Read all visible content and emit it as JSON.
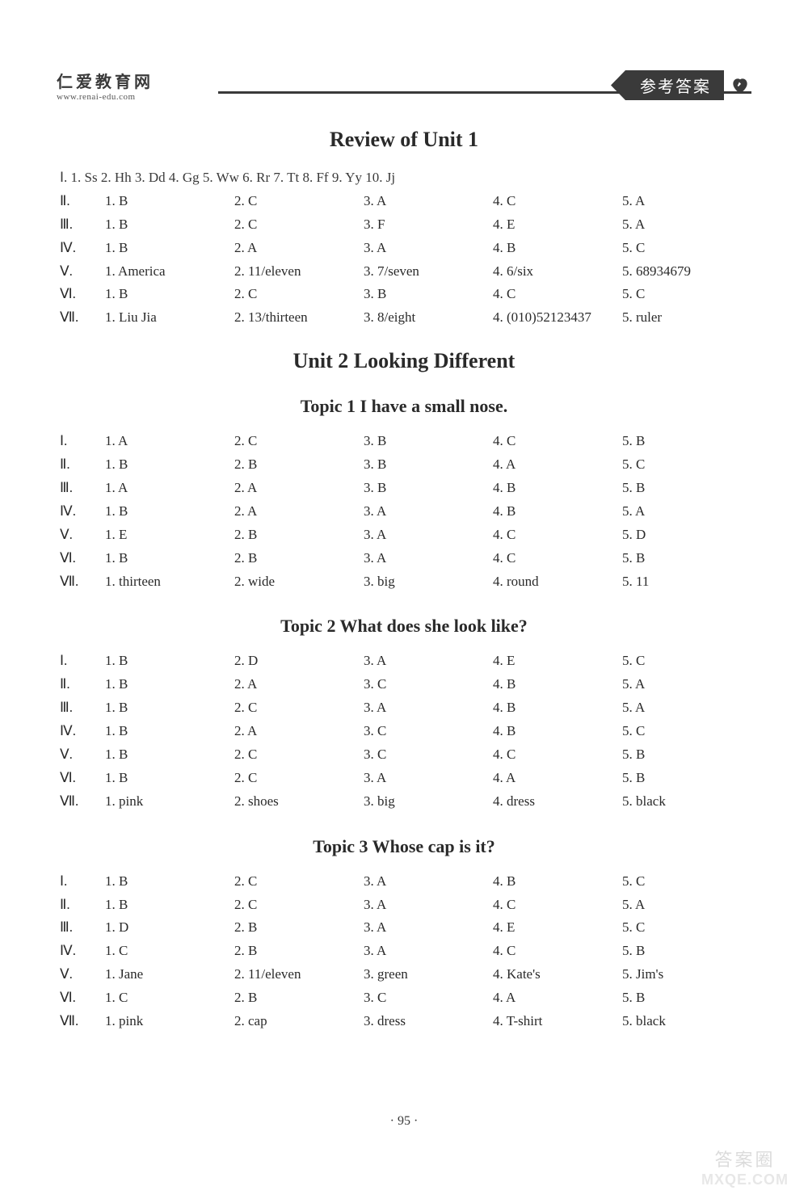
{
  "header": {
    "brand_cn": "仁爱教育网",
    "brand_url": "www.renai-edu.com",
    "badge_text": "参考答案"
  },
  "sections": {
    "review_unit1": {
      "title": "Review of Unit 1",
      "row1_full": "Ⅰ. 1. Ss   2. Hh   3. Dd   4. Gg   5. Ww   6. Rr   7. Tt   8. Ff   9. Yy   10. Jj",
      "row2": {
        "label": "Ⅱ.",
        "cells": [
          "1. B",
          "2. C",
          "3. A",
          "4. C",
          "5. A"
        ]
      },
      "row3": {
        "label": "Ⅲ.",
        "cells": [
          "1. B",
          "2. C",
          "3. F",
          "4. E",
          "5. A"
        ]
      },
      "row4": {
        "label": "Ⅳ.",
        "cells": [
          "1. B",
          "2. A",
          "3. A",
          "4. B",
          "5. C"
        ]
      },
      "row5": {
        "label": "Ⅴ.",
        "cells": [
          "1. America",
          "2. 11/eleven",
          "3. 7/seven",
          "4. 6/six",
          "5. 68934679"
        ]
      },
      "row6": {
        "label": "Ⅵ.",
        "cells": [
          "1. B",
          "2. C",
          "3. B",
          "4. C",
          "5. C"
        ]
      },
      "row7": {
        "label": "Ⅶ.",
        "cells": [
          "1. Liu Jia",
          "2. 13/thirteen",
          "3. 8/eight",
          "4. (010)52123437",
          "5. ruler"
        ]
      }
    },
    "unit2": {
      "title": "Unit 2   Looking Different",
      "topic1": {
        "title": "Topic 1   I have a small nose.",
        "rows": [
          {
            "label": "Ⅰ.",
            "cells": [
              "1. A",
              "2. C",
              "3. B",
              "4. C",
              "5. B"
            ]
          },
          {
            "label": "Ⅱ.",
            "cells": [
              "1. B",
              "2. B",
              "3. B",
              "4. A",
              "5. C"
            ]
          },
          {
            "label": "Ⅲ.",
            "cells": [
              "1. A",
              "2. A",
              "3. B",
              "4. B",
              "5. B"
            ]
          },
          {
            "label": "Ⅳ.",
            "cells": [
              "1. B",
              "2. A",
              "3. A",
              "4. B",
              "5. A"
            ]
          },
          {
            "label": "Ⅴ.",
            "cells": [
              "1. E",
              "2. B",
              "3. A",
              "4. C",
              "5. D"
            ]
          },
          {
            "label": "Ⅵ.",
            "cells": [
              "1. B",
              "2. B",
              "3. A",
              "4. C",
              "5. B"
            ]
          },
          {
            "label": "Ⅶ.",
            "cells": [
              "1. thirteen",
              "2. wide",
              "3. big",
              "4. round",
              "5. 11"
            ]
          }
        ]
      },
      "topic2": {
        "title": "Topic 2   What does she look like?",
        "rows": [
          {
            "label": "Ⅰ.",
            "cells": [
              "1. B",
              "2. D",
              "3. A",
              "4. E",
              "5. C"
            ]
          },
          {
            "label": "Ⅱ.",
            "cells": [
              "1. B",
              "2. A",
              "3. C",
              "4. B",
              "5. A"
            ]
          },
          {
            "label": "Ⅲ.",
            "cells": [
              "1. B",
              "2. C",
              "3. A",
              "4. B",
              "5. A"
            ]
          },
          {
            "label": "Ⅳ.",
            "cells": [
              "1. B",
              "2. A",
              "3. C",
              "4. B",
              "5. C"
            ]
          },
          {
            "label": "Ⅴ.",
            "cells": [
              "1. B",
              "2. C",
              "3. C",
              "4. C",
              "5. B"
            ]
          },
          {
            "label": "Ⅵ.",
            "cells": [
              "1. B",
              "2. C",
              "3. A",
              "4. A",
              "5. B"
            ]
          },
          {
            "label": "Ⅶ.",
            "cells": [
              "1. pink",
              "2. shoes",
              "3. big",
              "4. dress",
              "5. black"
            ]
          }
        ]
      },
      "topic3": {
        "title": "Topic 3   Whose cap is it?",
        "rows": [
          {
            "label": "Ⅰ.",
            "cells": [
              "1. B",
              "2. C",
              "3. A",
              "4. B",
              "5. C"
            ]
          },
          {
            "label": "Ⅱ.",
            "cells": [
              "1. B",
              "2. C",
              "3. A",
              "4. C",
              "5. A"
            ]
          },
          {
            "label": "Ⅲ.",
            "cells": [
              "1. D",
              "2. B",
              "3. A",
              "4. E",
              "5. C"
            ]
          },
          {
            "label": "Ⅳ.",
            "cells": [
              "1. C",
              "2. B",
              "3. A",
              "4. C",
              "5. B"
            ]
          },
          {
            "label": "Ⅴ.",
            "cells": [
              "1. Jane",
              "2. 11/eleven",
              "3. green",
              "4. Kate's",
              "5. Jim's"
            ]
          },
          {
            "label": "Ⅵ.",
            "cells": [
              "1. C",
              "2. B",
              "3. C",
              "4. A",
              "5. B"
            ]
          },
          {
            "label": "Ⅶ.",
            "cells": [
              "1. pink",
              "2. cap",
              "3. dress",
              "4. T-shirt",
              "5. black"
            ]
          }
        ]
      }
    }
  },
  "page_number": "· 95 ·",
  "watermark": {
    "top": "答案圈",
    "bottom": "MXQE.COM"
  },
  "colors": {
    "text": "#2a2a2a",
    "background": "#ffffff",
    "badge_bg": "#3a3a3a",
    "badge_text": "#ffffff"
  },
  "typography": {
    "title_fontsize_pt": 19,
    "topic_fontsize_pt": 16,
    "body_fontsize_pt": 12
  }
}
